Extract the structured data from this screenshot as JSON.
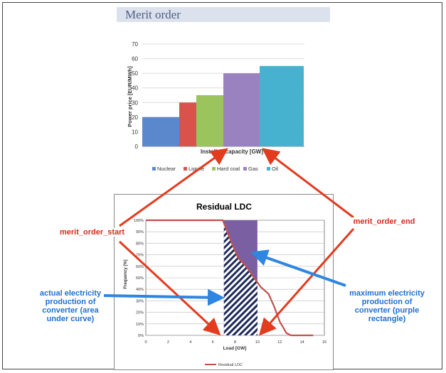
{
  "top_title": "Merit order",
  "chart_data": [
    {
      "type": "bar",
      "ylabel": "Power price [EUR/MWh]",
      "xlabel": "Installed capacity [GW]",
      "ylim": [
        0,
        70
      ],
      "yticks": [
        "0",
        "10",
        "20",
        "30",
        "40",
        "50",
        "60",
        "70"
      ],
      "grid": true,
      "legend_position": "bottom",
      "series": [
        {
          "name": "Nuclear",
          "value": 20,
          "color": "#5b87cc"
        },
        {
          "name": "Lignite",
          "value": 30,
          "color": "#d9534c"
        },
        {
          "name": "Hard coal",
          "value": 35,
          "color": "#9cc45c"
        },
        {
          "name": "Gas",
          "value": 50,
          "color": "#9a82c0"
        },
        {
          "name": "Oil",
          "value": 55,
          "color": "#47b2cf"
        }
      ]
    },
    {
      "type": "area",
      "title": "Residual LDC",
      "xlabel": "Load [GW]",
      "ylabel": "Frequency [%]",
      "xlim": [
        0,
        16
      ],
      "ylim": [
        0,
        100
      ],
      "xticks": [
        "0",
        "2",
        "4",
        "6",
        "8",
        "10",
        "12",
        "14",
        "16"
      ],
      "yticks": [
        "0%",
        "10%",
        "20%",
        "30%",
        "40%",
        "50%",
        "60%",
        "70%",
        "80%",
        "90%",
        "100%"
      ],
      "legend_position": "bottom",
      "series": [
        {
          "name": "Residual LDC",
          "color": "#c0504d",
          "x": [
            0,
            6.9,
            7.3,
            7.8,
            8.3,
            9.0,
            9.7,
            10.3,
            11.0,
            11.5,
            12.0,
            12.6,
            13.0,
            15.0
          ],
          "y": [
            100,
            100,
            90,
            78,
            67,
            60,
            50,
            42,
            36,
            25,
            12,
            2,
            0,
            0
          ]
        }
      ],
      "shaded_region": {
        "x_start": 7,
        "x_end": 10,
        "y_max": 100,
        "color": "#7a5fa3"
      }
    }
  ],
  "annotations": {
    "merit_order_start": "merit_order_start",
    "merit_order_end": "merit_order_end",
    "actual_label": "actual electricity production of converter (area under curve)",
    "maximum_label": "maximum electricity production of converter (purple rectangle)"
  },
  "colors": {
    "arrow_red": "#e23b1e",
    "arrow_blue": "#2f86e0"
  }
}
